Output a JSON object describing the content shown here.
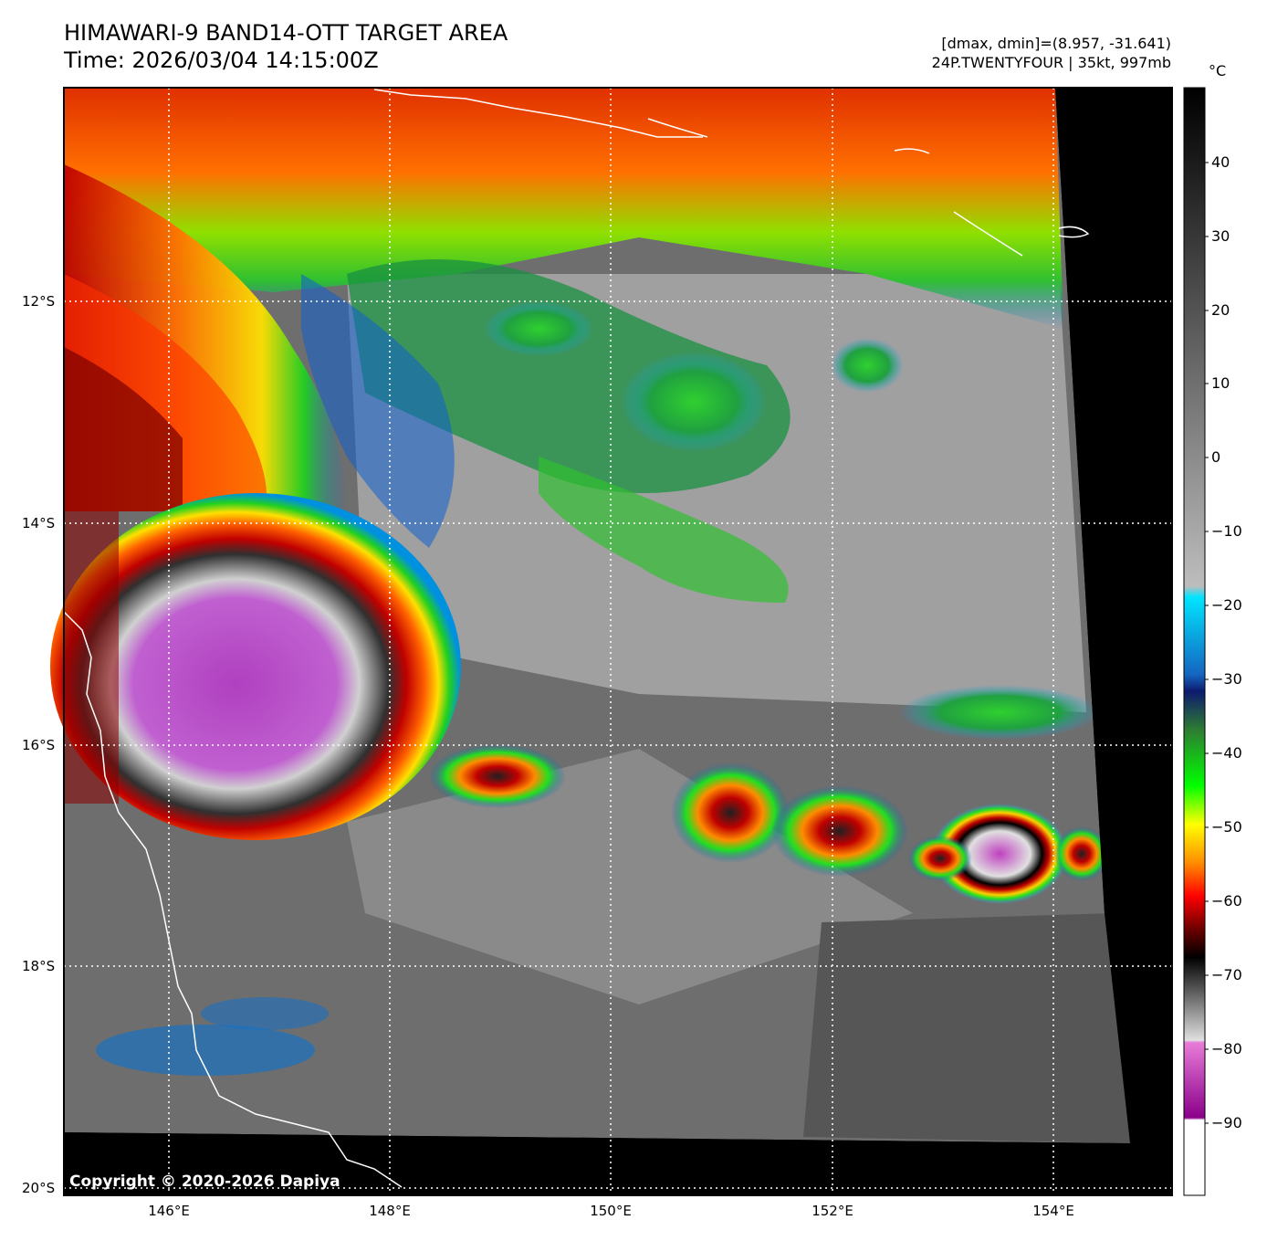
{
  "header": {
    "title_line1": "HIMAWARI-9 BAND14-OTT TARGET AREA",
    "title_line2": "Time: 2026/03/04 14:15:00Z",
    "info_line1": "[dmax, dmin]=(8.957, -31.641)",
    "info_line2": "24P.TWENTYFOUR | 35kt, 997mb"
  },
  "axes": {
    "lat_labels": [
      "12°S",
      "14°S",
      "16°S",
      "18°S",
      "20°S"
    ],
    "lon_labels": [
      "146°E",
      "148°E",
      "150°E",
      "152°E",
      "154°E"
    ]
  },
  "colorbar": {
    "unit": "°C",
    "ticks": [
      "40",
      "30",
      "20",
      "10",
      "0",
      "−10",
      "−20",
      "−30",
      "−40",
      "−50",
      "−60",
      "−70",
      "−80",
      "−90"
    ]
  },
  "copyright": "Copyright © 2020-2026 Dapiya"
}
